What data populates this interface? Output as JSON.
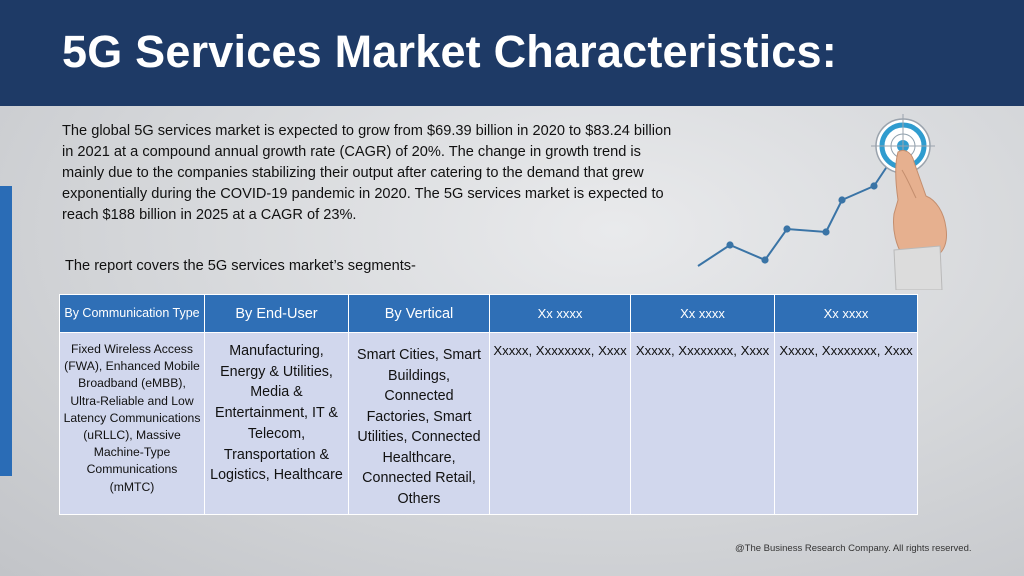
{
  "header": {
    "title": "5G Services Market Characteristics:"
  },
  "intro": {
    "paragraph": "The global 5G services market is expected to grow from $69.39 billion in 2020 to $83.24 billion in 2021 at a compound annual growth rate (CAGR) of 20%. The change in growth trend is mainly due to the companies stabilizing their output after catering to the demand that grew exponentially during the COVID-19 pandemic in 2020. The 5G services market is expected to reach $188 billion in 2025 at a CAGR of 23%."
  },
  "segments_label": "The report covers the 5G services market’s segments-",
  "table": {
    "headers": [
      "By Communication Type",
      "By End-User",
      "By Vertical",
      "Xx xxxx",
      "Xx xxxx",
      "Xx xxxx"
    ],
    "cells": [
      "Fixed Wireless Access (FWA), Enhanced Mobile Broadband (eMBB), Ultra-Reliable and Low Latency Communications (uRLLC), Massive Machine-Type Communications (mMTC)",
      "Manufacturing, Energy & Utilities, Media & Entertainment, IT & Telecom, Transportation & Logistics, Healthcare",
      "Smart Cities, Smart Buildings, Connected Factories, Smart Utilities, Connected Healthcare, Connected Retail, Others",
      "Xxxxx, Xxxxxxxx, Xxxx",
      "Xxxxx, Xxxxxxxx, Xxxx",
      "Xxxxx, Xxxxxxxx, Xxxx"
    ]
  },
  "footer": {
    "copyright": "@The Business Research Company. All rights reserved."
  },
  "graphic": {
    "icon": "growth-chart-target-hand-icon",
    "accent_color": "#3a74a6"
  }
}
